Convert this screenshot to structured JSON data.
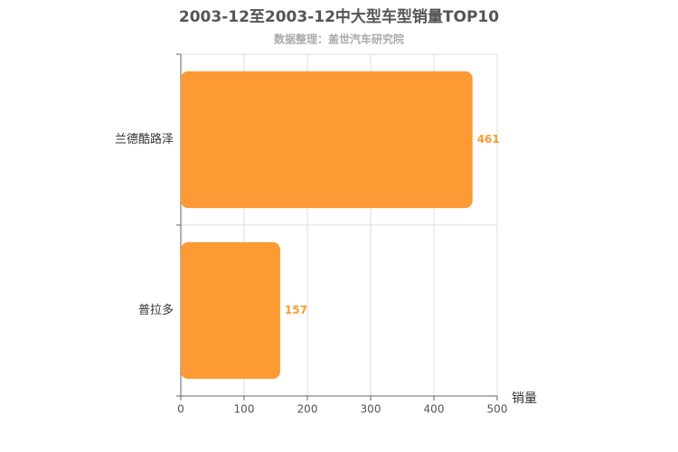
{
  "chart_data": {
    "type": "hbar",
    "title": "2003-12至2003-12中大型车型销量TOP10",
    "subtitle": "数据整理：盖世汽车研究院",
    "x_label": "销量",
    "categories": [
      "兰德酷路泽",
      "普拉多"
    ],
    "values": [
      461,
      157
    ],
    "color": "#fe9a33",
    "xlim": [
      0,
      500
    ],
    "xticks": [
      0,
      100,
      200,
      300,
      400,
      500
    ],
    "grid": true
  }
}
